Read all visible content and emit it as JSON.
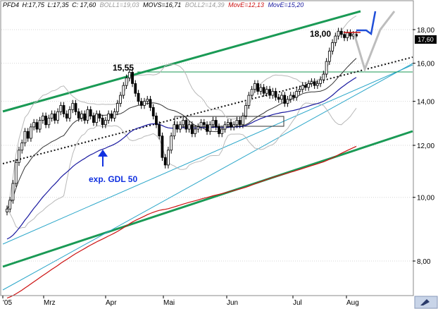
{
  "chart_data": {
    "type": "candlestick",
    "symbol": "PFD4",
    "header": {
      "symbol": "PFD4",
      "high": "H:17,75",
      "low": "L:17,35",
      "close": "C: 17,60",
      "boll1": "BOLL1=19,03",
      "movs": "MOVS=16,71",
      "boll2": "BOLL2=14,39",
      "move1": "MovE=12,13",
      "move2": "MovE=15,20"
    },
    "last_price_label": "17,60",
    "y_axis": {
      "scale": "log",
      "range": [
        7.2,
        20.0
      ],
      "ticks": [
        "18,00",
        "16,00",
        "14,00",
        "12,00",
        "10,00",
        "8,00"
      ]
    },
    "x_axis": {
      "months": [
        "'05",
        "Mrz",
        "Apr",
        "Mai",
        "Jun",
        "Jul",
        "Aug"
      ]
    },
    "annotations": {
      "peak1": "15,55",
      "peak2": "18,00",
      "ma_label": "exp. GDL 50"
    },
    "colors": {
      "upper_channel": "#1a9a55",
      "lower_channel": "#1a9a55",
      "support_line": "#2aa6c9",
      "horizontal": "#1a9a55",
      "ema50": "#1a1aa0",
      "ema200": "#cc1111",
      "bollinger": "#b8b8b8",
      "movs": "#333333",
      "projection_up": "#1f4ed8",
      "projection_gray": "#bdbdbd",
      "target_marker": "#cc1111",
      "arrow": "#1030e0"
    },
    "closes": [
      9.6,
      9.9,
      10.5,
      11.3,
      11.8,
      12.1,
      12.6,
      12.3,
      12.8,
      13.0,
      12.7,
      13.1,
      13.3,
      12.9,
      13.2,
      13.4,
      13.1,
      13.5,
      13.8,
      13.4,
      13.2,
      13.6,
      13.9,
      13.5,
      13.2,
      13.4,
      13.1,
      13.6,
      13.3,
      13.0,
      13.4,
      13.2,
      12.9,
      13.1,
      13.4,
      13.2,
      13.5,
      13.9,
      14.3,
      14.8,
      15.2,
      15.5,
      14.9,
      14.4,
      14.0,
      13.8,
      14.0,
      14.1,
      13.7,
      13.3,
      12.9,
      12.4,
      11.5,
      11.2,
      11.8,
      12.4,
      12.9,
      12.7,
      12.9,
      13.1,
      12.7,
      12.9,
      12.5,
      12.7,
      12.8,
      13.0,
      12.9,
      12.6,
      12.9,
      13.1,
      12.8,
      12.5,
      12.7,
      12.9,
      13.0,
      12.8,
      12.9,
      13.1,
      12.9,
      13.3,
      13.8,
      14.3,
      14.6,
      14.9,
      14.5,
      14.7,
      14.4,
      14.6,
      14.3,
      14.5,
      14.2,
      14.1,
      14.3,
      13.9,
      14.1,
      14.3,
      14.2,
      14.5,
      14.6,
      14.8,
      14.7,
      14.9,
      15.0,
      14.8,
      14.9,
      15.1,
      15.4,
      16.1,
      16.7,
      17.2,
      17.6,
      17.9,
      17.7,
      17.5,
      17.8,
      17.6,
      17.7,
      17.6
    ]
  }
}
